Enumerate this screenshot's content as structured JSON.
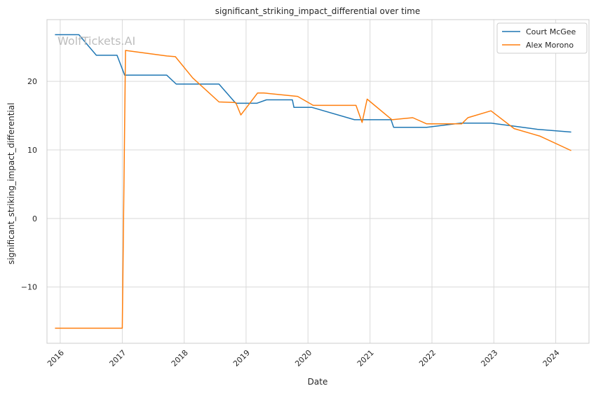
{
  "chart_data": {
    "type": "line",
    "title": "significant_striking_impact_differential over time",
    "xlabel": "Date",
    "ylabel": "significant_striking_impact_differential",
    "watermark": "WolfTickets.AI",
    "x_ticks": [
      "2016",
      "2017",
      "2018",
      "2019",
      "2020",
      "2021",
      "2022",
      "2023",
      "2024"
    ],
    "y_ticks": [
      -10,
      0,
      10,
      20
    ],
    "xlim": [
      "2015-10-15",
      "2024-07-15"
    ],
    "ylim": [
      -18.2,
      29.0
    ],
    "grid": true,
    "legend_position": "top-right",
    "colors": {
      "court_mcgee": "#1f77b4",
      "alex_morono": "#ff7f0e",
      "grid": "#d9d9d9",
      "frame": "#cccccc",
      "background": "#ffffff"
    },
    "series": [
      {
        "name": "Court McGee",
        "color": "#1f77b4",
        "points": [
          [
            "2015-12-01",
            26.8
          ],
          [
            "2016-04-20",
            26.8
          ],
          [
            "2016-08-01",
            23.8
          ],
          [
            "2016-12-01",
            23.8
          ],
          [
            "2017-01-15",
            20.9
          ],
          [
            "2017-09-20",
            20.9
          ],
          [
            "2017-11-15",
            19.6
          ],
          [
            "2018-07-25",
            19.6
          ],
          [
            "2018-11-01",
            16.8
          ],
          [
            "2019-03-05",
            16.8
          ],
          [
            "2019-05-01",
            17.3
          ],
          [
            "2019-10-01",
            17.3
          ],
          [
            "2019-10-10",
            16.2
          ],
          [
            "2020-01-25",
            16.2
          ],
          [
            "2020-10-01",
            14.4
          ],
          [
            "2021-05-05",
            14.4
          ],
          [
            "2021-05-20",
            13.3
          ],
          [
            "2021-12-01",
            13.3
          ],
          [
            "2022-06-20",
            13.9
          ],
          [
            "2022-12-15",
            13.9
          ],
          [
            "2023-04-20",
            13.5
          ],
          [
            "2023-09-15",
            13.0
          ],
          [
            "2024-04-01",
            12.6
          ]
        ]
      },
      {
        "name": "Alex Morono",
        "color": "#ff7f0e",
        "points": [
          [
            "2015-12-01",
            -16.0
          ],
          [
            "2017-01-01",
            -16.0
          ],
          [
            "2017-01-20",
            24.5
          ],
          [
            "2017-09-20",
            23.7
          ],
          [
            "2017-11-10",
            23.6
          ],
          [
            "2018-02-20",
            20.5
          ],
          [
            "2018-07-25",
            17.0
          ],
          [
            "2018-11-01",
            16.9
          ],
          [
            "2018-12-01",
            15.1
          ],
          [
            "2019-03-10",
            18.3
          ],
          [
            "2019-04-15",
            18.3
          ],
          [
            "2019-11-01",
            17.8
          ],
          [
            "2020-02-01",
            16.5
          ],
          [
            "2020-10-10",
            16.5
          ],
          [
            "2020-11-15",
            14.0
          ],
          [
            "2020-12-15",
            17.4
          ],
          [
            "2021-05-10",
            14.4
          ],
          [
            "2021-09-10",
            14.7
          ],
          [
            "2021-12-01",
            13.8
          ],
          [
            "2022-06-25",
            13.8
          ],
          [
            "2022-08-01",
            14.7
          ],
          [
            "2022-12-15",
            15.7
          ],
          [
            "2023-05-01",
            13.1
          ],
          [
            "2023-10-01",
            12.0
          ],
          [
            "2024-04-01",
            9.9
          ]
        ]
      }
    ]
  }
}
